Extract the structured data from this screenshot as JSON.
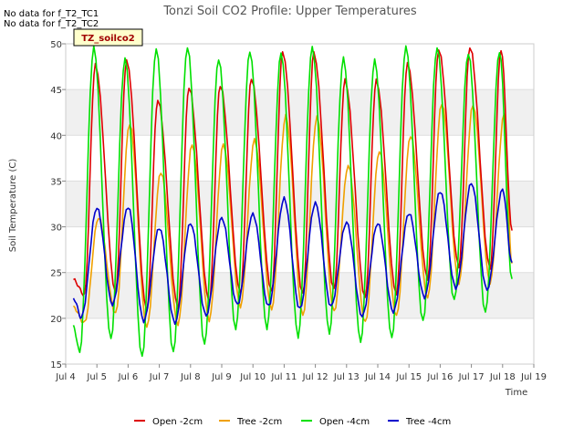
{
  "chart_data": {
    "type": "line",
    "title": "Tonzi Soil CO2 Profile: Upper Temperatures",
    "xlabel": "Time",
    "ylabel": "Soil Temperature (C)",
    "xlim": [
      4.0,
      19.0
    ],
    "ylim": [
      15,
      50
    ],
    "xticks": [
      4,
      5,
      6,
      7,
      8,
      9,
      10,
      11,
      12,
      13,
      14,
      15,
      16,
      17,
      18,
      19
    ],
    "xtick_labels": [
      "Jul 4",
      "Jul 5",
      "Jul 6",
      "Jul 7",
      "Jul 8",
      "Jul 9",
      "Jul 10",
      "Jul 11",
      "Jul 12",
      "Jul 13",
      "Jul 14",
      "Jul 15",
      "Jul 16",
      "Jul 17",
      "Jul 18",
      "Jul 19"
    ],
    "yticks": [
      15,
      20,
      25,
      30,
      35,
      40,
      45,
      50
    ],
    "ytick_labels": [
      "15",
      "20",
      "25",
      "30",
      "35",
      "40",
      "45",
      "50"
    ],
    "grid": "horizontal bands",
    "band_color": "#f0f0f0",
    "notes": [
      "No data for f_T2_TC1",
      "No data for f_T2_TC2"
    ],
    "tag_label": "TZ_soilco2",
    "legend_position": "bottom-center",
    "x_start": 4.25,
    "x_end": 18.3,
    "series": [
      {
        "name": "Open -2cm",
        "color": "#dd0000",
        "start": 24.2,
        "peaks": [
          4.95,
          47.7,
          5.95,
          48.2,
          6.95,
          43.9,
          7.95,
          45.3,
          8.95,
          45.5,
          9.95,
          46.2,
          10.95,
          49.1,
          11.95,
          49.0,
          12.95,
          46.0,
          13.95,
          46.0,
          14.95,
          47.9,
          15.95,
          49.4,
          16.95,
          49.7,
          17.95,
          49.4
        ],
        "troughs": [
          4.6,
          22.6,
          5.6,
          22.8,
          6.6,
          20.9,
          7.6,
          21.2,
          8.6,
          21.8,
          9.6,
          22.8,
          10.6,
          22.9,
          11.6,
          22.6,
          12.6,
          23.1,
          13.6,
          22.2,
          14.6,
          22.6,
          15.6,
          24.3,
          16.6,
          25.7,
          17.6,
          25.5
        ],
        "end": 29.6
      },
      {
        "name": "Tree -2cm",
        "color": "#f0a000",
        "start": 21.2,
        "peaks": [
          5.05,
          31.0,
          6.05,
          41.3,
          7.05,
          36.0,
          8.05,
          39.0,
          9.05,
          39.0,
          10.05,
          39.5,
          11.05,
          42.1,
          12.05,
          42.0,
          13.05,
          36.7,
          14.05,
          38.3,
          15.05,
          40.0,
          16.05,
          43.5,
          17.05,
          43.3,
          18.05,
          42.3
        ],
        "troughs": [
          4.6,
          19.5,
          5.6,
          20.5,
          6.6,
          19.0,
          7.6,
          19.3,
          8.6,
          19.8,
          9.6,
          21.3,
          10.6,
          21.0,
          11.6,
          20.3,
          12.6,
          20.7,
          13.6,
          19.5,
          14.6,
          20.2,
          15.6,
          22.2,
          16.6,
          23.8,
          17.6,
          23.9
        ],
        "end": 26.0
      },
      {
        "name": "Open -4cm",
        "color": "#00e000",
        "start": 19.1,
        "peaks": [
          4.9,
          49.6,
          5.9,
          48.4,
          6.9,
          49.5,
          7.9,
          49.7,
          8.9,
          48.4,
          9.9,
          49.2,
          10.9,
          49.0,
          11.9,
          49.6,
          12.9,
          48.4,
          13.9,
          48.2,
          14.9,
          49.7,
          15.9,
          49.6,
          16.9,
          49.0,
          17.9,
          49.2
        ],
        "troughs": [
          4.45,
          16.3,
          5.45,
          17.7,
          6.45,
          15.7,
          7.45,
          16.2,
          8.45,
          17.1,
          9.45,
          18.8,
          10.45,
          18.9,
          11.45,
          18.0,
          12.45,
          18.4,
          13.45,
          17.4,
          14.45,
          17.8,
          15.45,
          19.6,
          16.45,
          21.9,
          17.45,
          20.6
        ],
        "end": 24.3
      },
      {
        "name": "Tree -4cm",
        "color": "#0000cc",
        "start": 22.2,
        "peaks": [
          5.0,
          32.1,
          6.0,
          32.2,
          7.0,
          29.9,
          8.0,
          30.4,
          9.0,
          31.0,
          10.0,
          31.4,
          11.0,
          33.1,
          12.0,
          32.6,
          13.0,
          30.5,
          14.0,
          30.4,
          15.0,
          31.5,
          16.0,
          33.9,
          17.0,
          34.8,
          18.0,
          34.1
        ],
        "troughs": [
          4.5,
          20.1,
          5.5,
          21.5,
          6.5,
          19.7,
          7.5,
          19.5,
          8.5,
          20.3,
          9.5,
          21.5,
          10.5,
          21.3,
          11.5,
          21.0,
          12.5,
          21.3,
          13.5,
          20.2,
          14.5,
          20.7,
          15.5,
          22.3,
          16.5,
          23.3,
          17.5,
          23.1
        ],
        "end": 26.1
      }
    ]
  }
}
